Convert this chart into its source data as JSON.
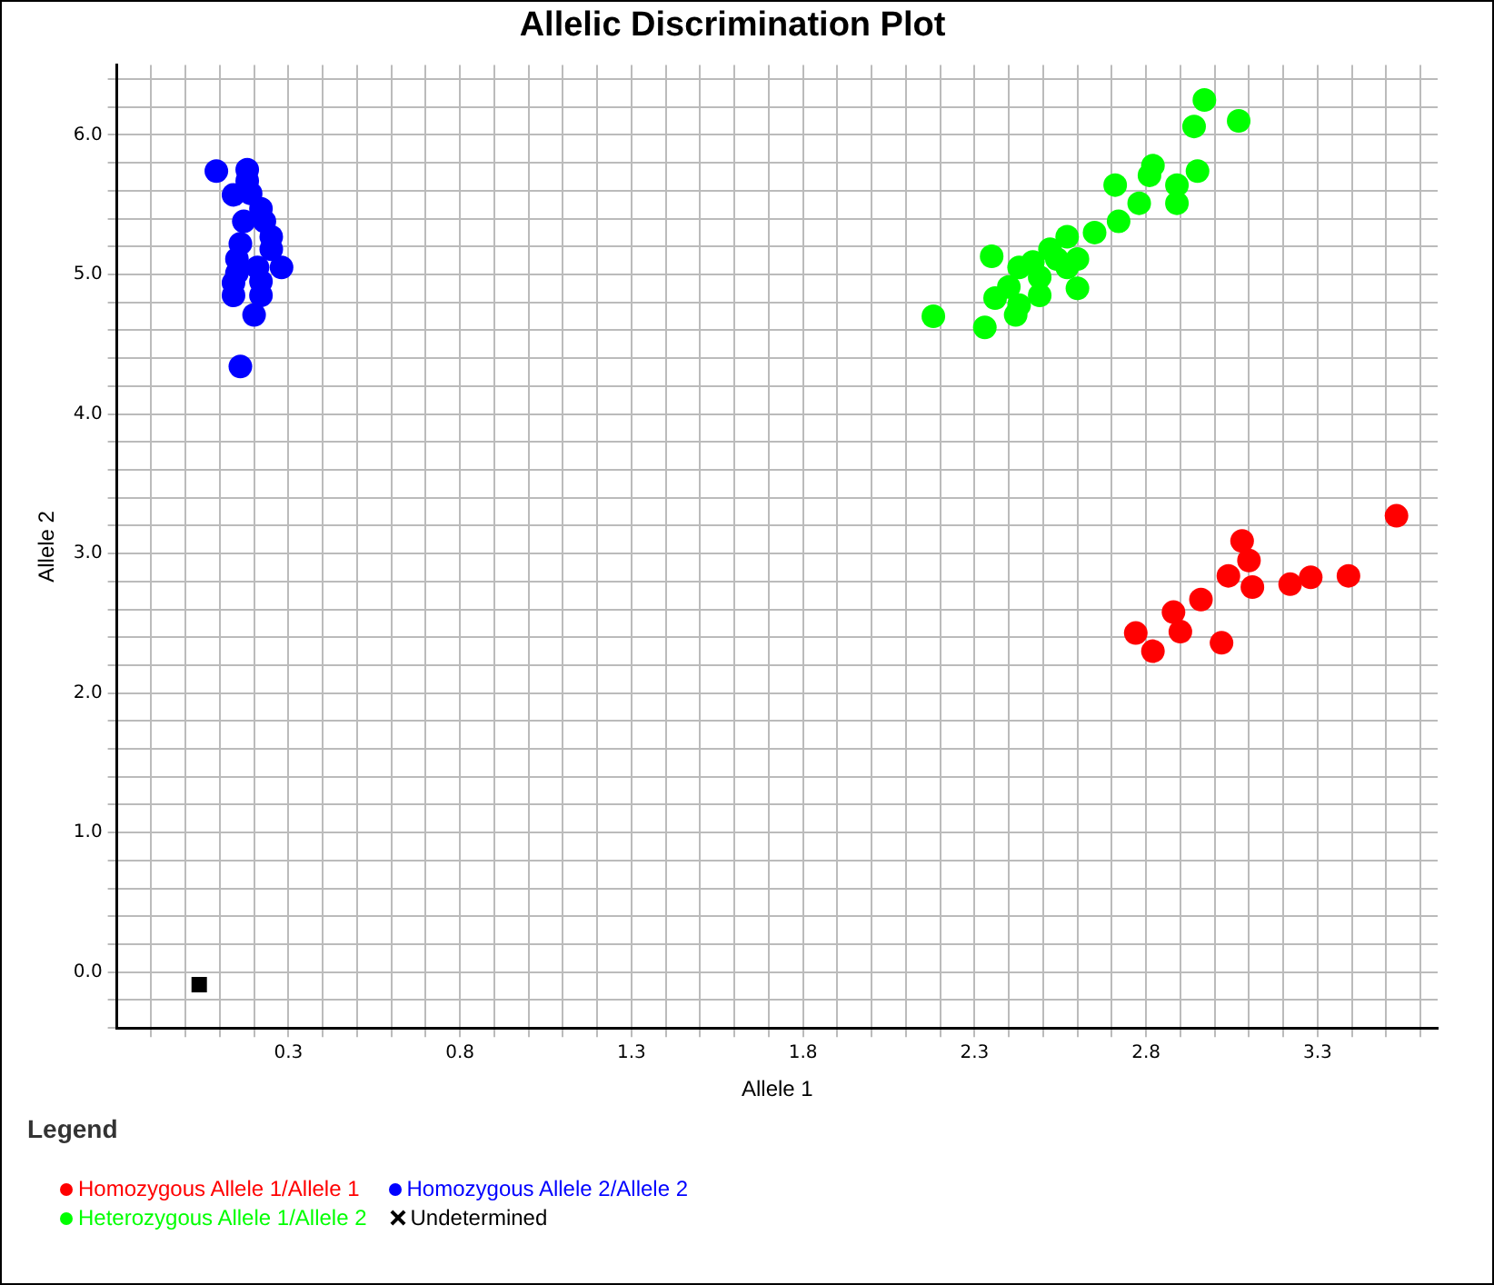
{
  "chart_data": {
    "type": "scatter",
    "title": "Allelic Discrimination Plot",
    "xlabel": "Allele 1",
    "ylabel": "Allele 2",
    "legend_title": "Legend",
    "legend": "bottom",
    "grid": true,
    "marker": "circle",
    "xlim": [
      -0.2,
      3.65
    ],
    "ylim": [
      -0.4,
      6.5
    ],
    "xticks": [
      {
        "value": -0.1,
        "label": null
      },
      {
        "value": 0,
        "label": null
      },
      {
        "value": 0.1,
        "label": null
      },
      {
        "value": 0.2,
        "label": null
      },
      0.3,
      {
        "value": 0.4,
        "label": null
      },
      {
        "value": 0.5,
        "label": null
      },
      {
        "value": 0.6,
        "label": null
      },
      {
        "value": 0.7,
        "label": null
      },
      0.8,
      {
        "value": 0.9,
        "label": null
      },
      {
        "value": 1,
        "label": null
      },
      {
        "value": 1.1,
        "label": null
      },
      {
        "value": 1.2,
        "label": null
      },
      1.3,
      {
        "value": 1.4,
        "label": null
      },
      {
        "value": 1.5,
        "label": null
      },
      {
        "value": 1.6,
        "label": null
      },
      {
        "value": 1.7,
        "label": null
      },
      1.8,
      {
        "value": 1.9,
        "label": null
      },
      {
        "value": 2,
        "label": null
      },
      {
        "value": 2.1,
        "label": null
      },
      {
        "value": 2.2,
        "label": null
      },
      2.3,
      {
        "value": 2.4,
        "label": null
      },
      {
        "value": 2.5,
        "label": null
      },
      {
        "value": 2.6,
        "label": null
      },
      {
        "value": 2.7,
        "label": null
      },
      2.8,
      {
        "value": 2.9,
        "label": null
      },
      {
        "value": 3,
        "label": null
      },
      {
        "value": 3.1,
        "label": null
      },
      {
        "value": 3.2,
        "label": null
      },
      3.3,
      {
        "value": 3.4,
        "label": null
      },
      {
        "value": 3.5,
        "label": null
      },
      {
        "value": 3.6,
        "label": null
      }
    ],
    "yticks": [
      {
        "value": -0.4,
        "label": null
      },
      {
        "value": -0.2,
        "label": null
      },
      {
        "value": 0,
        "label": "0.0"
      },
      {
        "value": 0.2,
        "label": null
      },
      {
        "value": 0.4,
        "label": null
      },
      {
        "value": 0.6,
        "label": null
      },
      {
        "value": 0.8,
        "label": null
      },
      {
        "value": 1,
        "label": "1.0"
      },
      {
        "value": 1.2,
        "label": null
      },
      {
        "value": 1.4,
        "label": null
      },
      {
        "value": 1.6,
        "label": null
      },
      {
        "value": 1.8,
        "label": null
      },
      {
        "value": 2,
        "label": "2.0"
      },
      {
        "value": 2.2,
        "label": null
      },
      {
        "value": 2.4,
        "label": null
      },
      {
        "value": 2.6,
        "label": null
      },
      {
        "value": 2.8,
        "label": null
      },
      {
        "value": 3,
        "label": "3.0"
      },
      {
        "value": 3.2,
        "label": null
      },
      {
        "value": 3.4,
        "label": null
      },
      {
        "value": 3.6,
        "label": null
      },
      {
        "value": 3.8,
        "label": null
      },
      {
        "value": 4,
        "label": "4.0"
      },
      {
        "value": 4.2,
        "label": null
      },
      {
        "value": 4.4,
        "label": null
      },
      {
        "value": 4.6,
        "label": null
      },
      {
        "value": 4.8,
        "label": null
      },
      {
        "value": 5,
        "label": "5.0"
      },
      {
        "value": 5.2,
        "label": null
      },
      {
        "value": 5.4,
        "label": null
      },
      {
        "value": 5.6,
        "label": null
      },
      {
        "value": 5.8,
        "label": null
      },
      {
        "value": 6,
        "label": "6.0"
      },
      {
        "value": 6.2,
        "label": null
      },
      {
        "value": 6.4,
        "label": null
      }
    ],
    "series": [
      {
        "name": "Homozygous Allele 1/Allele 1",
        "color": "#ff0000",
        "x": [
          2.77,
          2.82,
          2.88,
          2.9,
          2.96,
          3.02,
          3.04,
          3.1,
          3.08,
          3.11,
          3.22,
          3.28,
          3.39,
          3.53
        ],
        "values": [
          2.43,
          2.3,
          2.58,
          2.44,
          2.67,
          2.36,
          2.84,
          2.95,
          3.09,
          2.76,
          2.78,
          2.83,
          2.84,
          3.27
        ]
      },
      {
        "name": "Homozygous Allele 2/Allele 2",
        "color": "#0000ff",
        "x": [
          0.09,
          0.18,
          0.18,
          0.19,
          0.14,
          0.22,
          0.23,
          0.17,
          0.25,
          0.25,
          0.16,
          0.15,
          0.21,
          0.15,
          0.28,
          0.14,
          0.22,
          0.14,
          0.22,
          0.2,
          0.16
        ],
        "values": [
          5.74,
          5.75,
          5.67,
          5.58,
          5.57,
          5.47,
          5.38,
          5.38,
          5.27,
          5.18,
          5.22,
          5.11,
          5.05,
          5.01,
          5.05,
          4.94,
          4.95,
          4.85,
          4.85,
          4.71,
          4.34
        ]
      },
      {
        "name": "Heterozygous Allele 1/Allele 2",
        "color": "#00ff00",
        "x": [
          2.18,
          2.33,
          2.35,
          2.36,
          2.42,
          2.43,
          2.49,
          2.47,
          2.52,
          2.43,
          2.54,
          2.6,
          2.6,
          2.57,
          2.65,
          2.72,
          2.71,
          2.78,
          2.81,
          2.89,
          2.82,
          2.95,
          2.94,
          2.97,
          3.07,
          2.49,
          2.4,
          2.57,
          2.89
        ],
        "values": [
          4.7,
          4.62,
          5.13,
          4.83,
          4.71,
          4.78,
          4.98,
          5.09,
          5.18,
          5.05,
          5.11,
          5.11,
          4.9,
          5.27,
          5.3,
          5.38,
          5.64,
          5.51,
          5.71,
          5.64,
          5.78,
          5.74,
          6.06,
          6.25,
          6.1,
          4.85,
          4.91,
          5.05,
          5.51
        ]
      },
      {
        "name": "Undetermined",
        "color": "#000000",
        "marker": "square",
        "x": [
          0.04
        ],
        "values": [
          -0.09
        ]
      }
    ]
  }
}
